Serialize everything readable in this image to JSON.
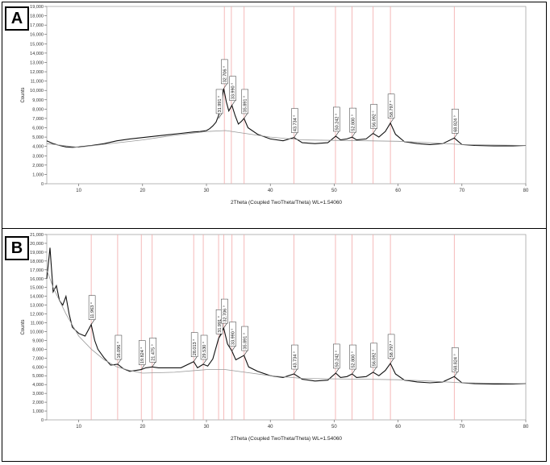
{
  "panels": [
    {
      "label": "A"
    },
    {
      "label": "B"
    }
  ],
  "chart_data": [
    {
      "type": "line",
      "panel": "A",
      "xlabel": "2Theta (Coupled TwoTheta/Theta) WL=1.54060",
      "ylabel": "Counts",
      "xlim": [
        5,
        80
      ],
      "ylim": [
        0,
        19000
      ],
      "xticks": [
        10,
        20,
        30,
        40,
        50,
        60,
        70,
        80
      ],
      "yticks": [
        0,
        1000,
        2000,
        3000,
        4000,
        5000,
        6000,
        7000,
        8000,
        9000,
        10000,
        11000,
        12000,
        13000,
        14000,
        15000,
        16000,
        17000,
        18000,
        19000
      ],
      "ytick_labels": [
        "0",
        "1,000",
        "2,000",
        "3,000",
        "4,000",
        "5,000",
        "6,000",
        "7,000",
        "8,000",
        "9,000",
        "10,000",
        "11,000",
        "12,000",
        "13,000",
        "14,000",
        "15,000",
        "16,000",
        "17,000",
        "18,000",
        "19,000"
      ],
      "reference_lines": [
        32.8,
        33.9,
        35.9,
        43.7,
        50.2,
        52.8,
        56.1,
        58.8,
        68.8
      ],
      "series": [
        {
          "x": [
            5,
            6,
            7,
            8,
            9,
            10,
            12,
            14,
            16,
            18,
            20,
            22,
            24,
            26,
            28,
            29,
            30,
            30.5,
            31,
            31.5,
            31.9,
            32.3,
            32.7,
            33.1,
            33.5,
            33.99,
            34.5,
            35.0,
            35.5,
            35.89,
            36.5,
            38,
            40,
            42,
            43.7,
            45,
            47,
            49,
            50.24,
            51,
            52.0,
            52.8,
            53.5,
            55,
            56.09,
            57,
            58.0,
            58.8,
            59.6,
            61,
            63,
            65,
            67,
            68.8,
            70,
            72,
            75,
            78,
            80
          ],
          "y": [
            4600,
            4300,
            4100,
            3950,
            3900,
            3950,
            4100,
            4300,
            4600,
            4800,
            4950,
            5100,
            5250,
            5400,
            5550,
            5600,
            5700,
            5900,
            6200,
            6600,
            7300,
            8400,
            10200,
            8800,
            7800,
            8400,
            7300,
            6400,
            6700,
            7000,
            6000,
            5300,
            4800,
            4600,
            4950,
            4400,
            4300,
            4400,
            5100,
            4700,
            4800,
            5000,
            4700,
            4800,
            5400,
            5000,
            5600,
            6500,
            5300,
            4500,
            4300,
            4200,
            4300,
            4900,
            4200,
            4100,
            4050,
            4050,
            4100
          ]
        },
        {
          "x": [
            5,
            10,
            20,
            25,
            30,
            33,
            36,
            40,
            45,
            50,
            55,
            60,
            65,
            70,
            80
          ],
          "y": [
            4300,
            3900,
            4700,
            5200,
            5600,
            5700,
            5400,
            5000,
            4700,
            4650,
            4600,
            4550,
            4400,
            4200,
            4100
          ]
        }
      ],
      "peak_labels": [
        {
          "x": 31.9,
          "y": 7000,
          "label": "31.991 °"
        },
        {
          "x": 32.7,
          "y": 10200,
          "label": "32.706 °"
        },
        {
          "x": 33.99,
          "y": 8400,
          "label": "33.990 °"
        },
        {
          "x": 35.89,
          "y": 7000,
          "label": "35.891 °"
        },
        {
          "x": 43.7,
          "y": 4950,
          "label": "43.734 °"
        },
        {
          "x": 50.24,
          "y": 5100,
          "label": "50.242 °"
        },
        {
          "x": 52.8,
          "y": 5000,
          "label": "52.800 °"
        },
        {
          "x": 56.09,
          "y": 5400,
          "label": "56.092 °"
        },
        {
          "x": 58.8,
          "y": 6500,
          "label": "58.797 °"
        },
        {
          "x": 68.8,
          "y": 4900,
          "label": "68.824 °"
        }
      ]
    },
    {
      "type": "line",
      "panel": "B",
      "xlabel": "2Theta (Coupled TwoTheta/Theta) WL=1.54060",
      "ylabel": "Counts",
      "xlim": [
        5,
        80
      ],
      "ylim": [
        0,
        21000
      ],
      "xticks": [
        10,
        20,
        30,
        40,
        50,
        60,
        70,
        80
      ],
      "yticks": [
        0,
        1000,
        2000,
        3000,
        4000,
        5000,
        6000,
        7000,
        8000,
        9000,
        10000,
        11000,
        12000,
        13000,
        14000,
        15000,
        16000,
        17000,
        18000,
        19000,
        20000,
        21000
      ],
      "ytick_labels": [
        "0",
        "1,000",
        "2,000",
        "3,000",
        "4,000",
        "5,000",
        "6,000",
        "7,000",
        "8,000",
        "9,000",
        "10,000",
        "11,000",
        "12,000",
        "13,000",
        "14,000",
        "15,000",
        "16,000",
        "17,000",
        "18,000",
        "19,000",
        "20,000",
        "21,000"
      ],
      "reference_lines": [
        11.96,
        16.1,
        19.8,
        21.5,
        28.0,
        29.5,
        31.9,
        32.7,
        34.0,
        35.9,
        43.7,
        50.2,
        52.8,
        56.1,
        58.8,
        68.8
      ],
      "series": [
        {
          "x": [
            5,
            5.5,
            6,
            6.5,
            7,
            7.5,
            8,
            8.5,
            9,
            10,
            11,
            11.96,
            12.5,
            13,
            14,
            15,
            16.1,
            17,
            18,
            19.8,
            20.5,
            21.5,
            22.5,
            24,
            26,
            28.0,
            28.6,
            29.5,
            30.2,
            31,
            31.9,
            32.7,
            33.3,
            33.99,
            34.6,
            35.89,
            36.6,
            38,
            40,
            42,
            43.7,
            45,
            47,
            49,
            50.24,
            51,
            52,
            52.8,
            53.5,
            55,
            56.09,
            57,
            58,
            58.8,
            59.6,
            61,
            63,
            65,
            67,
            68.8,
            70,
            72,
            75,
            78,
            80
          ],
          "y": [
            16000,
            19500,
            14500,
            15200,
            13500,
            13000,
            14000,
            12000,
            10500,
            9800,
            9500,
            10800,
            9000,
            8000,
            7000,
            6200,
            6300,
            5800,
            5500,
            5700,
            5900,
            6000,
            5900,
            5900,
            5900,
            6600,
            5900,
            6300,
            6100,
            6900,
            9200,
            10400,
            8600,
            7800,
            6800,
            7300,
            6000,
            5500,
            5000,
            4800,
            5200,
            4600,
            4400,
            4500,
            5300,
            4800,
            4900,
            5200,
            4800,
            4900,
            5400,
            5000,
            5600,
            6400,
            5200,
            4500,
            4300,
            4200,
            4300,
            4900,
            4200,
            4100,
            4050,
            4050,
            4100
          ]
        },
        {
          "x": [
            5,
            6,
            8,
            10,
            12,
            14,
            16,
            18,
            20,
            25,
            30,
            33,
            36,
            40,
            45,
            50,
            55,
            60,
            65,
            70,
            80
          ],
          "y": [
            17000,
            15000,
            12000,
            9500,
            8000,
            6800,
            6000,
            5600,
            5300,
            5400,
            5700,
            5700,
            5400,
            5000,
            4700,
            4650,
            4600,
            4550,
            4400,
            4200,
            4100
          ]
        }
      ],
      "peak_labels": [
        {
          "x": 11.96,
          "y": 10800,
          "label": "11.963 °"
        },
        {
          "x": 16.1,
          "y": 6300,
          "label": "16.096 °"
        },
        {
          "x": 19.8,
          "y": 5700,
          "label": "19.824 °"
        },
        {
          "x": 21.5,
          "y": 6000,
          "label": "21.475 °"
        },
        {
          "x": 28.0,
          "y": 6600,
          "label": "28.013 °"
        },
        {
          "x": 29.5,
          "y": 6300,
          "label": "29.530 °"
        },
        {
          "x": 31.9,
          "y": 9200,
          "label": "31.991 °"
        },
        {
          "x": 32.7,
          "y": 10400,
          "label": "32.706 °"
        },
        {
          "x": 33.99,
          "y": 7800,
          "label": "33.990 °"
        },
        {
          "x": 35.89,
          "y": 7300,
          "label": "35.891 °"
        },
        {
          "x": 43.7,
          "y": 5200,
          "label": "43.734 °"
        },
        {
          "x": 50.24,
          "y": 5300,
          "label": "50.242 °"
        },
        {
          "x": 52.8,
          "y": 5200,
          "label": "52.800 °"
        },
        {
          "x": 56.09,
          "y": 5400,
          "label": "56.092 °"
        },
        {
          "x": 58.8,
          "y": 6400,
          "label": "58.797 °"
        },
        {
          "x": 68.8,
          "y": 4900,
          "label": "68.824 °"
        }
      ]
    }
  ]
}
